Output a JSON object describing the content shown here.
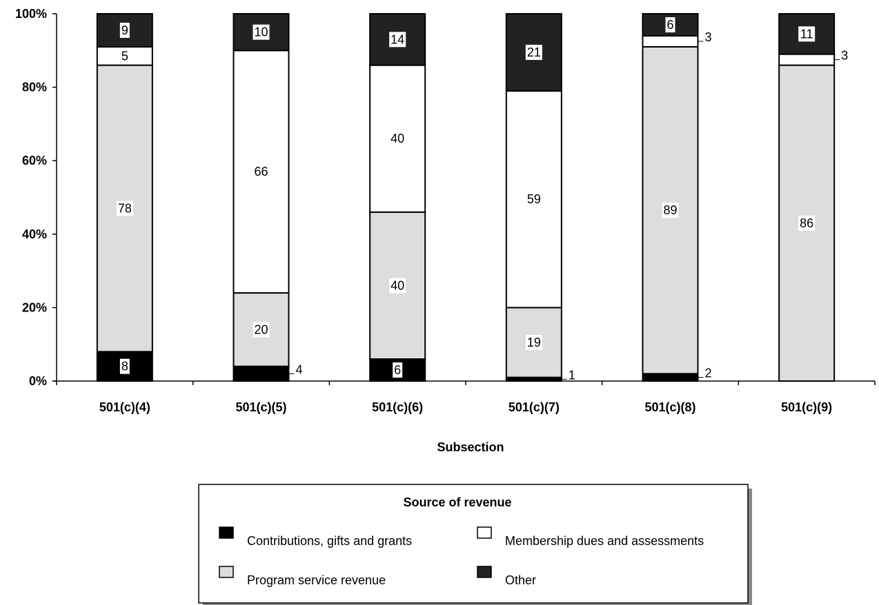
{
  "chart_data": {
    "type": "bar",
    "stacked": true,
    "orientation": "vertical",
    "xlabel": "Subsection",
    "ylabel": "",
    "ylim": [
      0,
      100
    ],
    "y_ticks": [
      "0%",
      "20%",
      "40%",
      "60%",
      "80%",
      "100%"
    ],
    "categories": [
      "501(c)(4)",
      "501(c)(5)",
      "501(c)(6)",
      "501(c)(7)",
      "501(c)(8)",
      "501(c)(9)"
    ],
    "series": [
      {
        "name": "Contributions, gifts and grants",
        "color": "#000000",
        "values": [
          8,
          4,
          6,
          1,
          2,
          0
        ],
        "labels": [
          "8",
          "4",
          "6",
          "1",
          "2",
          ""
        ]
      },
      {
        "name": "Program service revenue",
        "color": "#dddddd",
        "values": [
          78,
          20,
          40,
          19,
          89,
          86
        ],
        "labels": [
          "78",
          "20",
          "40",
          "19",
          "89",
          "86"
        ]
      },
      {
        "name": "Membership dues and assessments",
        "color": "#ffffff",
        "values": [
          5,
          66,
          40,
          59,
          3,
          3
        ],
        "labels": [
          "5",
          "66",
          "40",
          "59",
          "3",
          "3"
        ]
      },
      {
        "name": "Other",
        "color": "#222222",
        "values": [
          9,
          10,
          14,
          21,
          6,
          11
        ],
        "labels": [
          "9",
          "10",
          "14",
          "21",
          "6",
          "11"
        ]
      }
    ],
    "legend": {
      "title": "Source of revenue",
      "position": "bottom-center",
      "order": [
        0,
        2,
        1,
        3
      ]
    },
    "grid": false
  }
}
